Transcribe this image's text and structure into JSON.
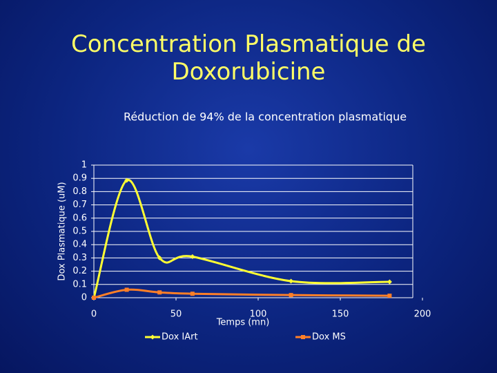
{
  "chart_data": {
    "type": "line",
    "title": "Concentration Plasmatique de Doxorubicine",
    "subtitle": "Réduction de 94% de la concentration plasmatique",
    "x_label": "Temps (mn)",
    "y_label": "Dox Plasmatique (uM)",
    "x": [
      0,
      20,
      40,
      60,
      120,
      180
    ],
    "series": [
      {
        "name": "Dox IArt",
        "color": "#ffff33",
        "values": [
          0,
          0.885,
          0.3,
          0.31,
          0.125,
          0.12
        ]
      },
      {
        "name": "Dox MS",
        "color": "#ff7f27",
        "values": [
          0,
          0.06,
          0.04,
          0.03,
          0.02,
          0.015
        ]
      }
    ],
    "xlim": [
      0,
      200
    ],
    "xticks": [
      0,
      50,
      100,
      150,
      200
    ],
    "ylim": [
      0,
      1
    ],
    "yticks": [
      0,
      0.1,
      0.2,
      0.3,
      0.4,
      0.5,
      0.6,
      0.7,
      0.8,
      0.9,
      1
    ],
    "grid": true,
    "legend": "bottom"
  }
}
